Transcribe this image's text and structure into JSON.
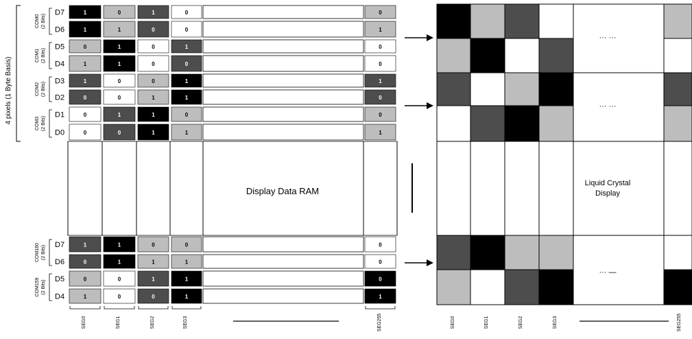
{
  "left_axis_label": "4 pixels (1 Byte Basis)",
  "ram_label": "Display Data RAM",
  "lcd_label_line1": "Liquid Crystal",
  "lcd_label_line2": "Display",
  "ellipsis_top": "···  ···",
  "ellipsis_mid": "···  ···",
  "ellipsis_bottom": "···  —",
  "colors": {
    "v0": "#ffffff",
    "v1": "#bdbdbd",
    "v2": "#4d4d4d",
    "v3": "#000000",
    "line": "#000000"
  },
  "com_labels": [
    {
      "line1": "COM0",
      "line2": "(2 Bits)"
    },
    {
      "line1": "COM1",
      "line2": "(2 Bits)"
    },
    {
      "line1": "COM2",
      "line2": "(2 Bits)"
    },
    {
      "line1": "COM3",
      "line2": "(2 Bits)"
    }
  ],
  "com_labels_bottom": [
    {
      "line1": "COM160",
      "line2": "(2 Bits)"
    },
    {
      "line1": "COM159",
      "line2": "(2 Bits)"
    }
  ],
  "bit_labels_top": [
    "D7",
    "D6",
    "D5",
    "D4",
    "D3",
    "D2",
    "D1",
    "D0"
  ],
  "bit_labels_bottom": [
    "D7",
    "D6",
    "D5",
    "D4"
  ],
  "ram_seg_labels": [
    "SEG0",
    "SEG1",
    "SEG2",
    "SEG3",
    "SEG255"
  ],
  "lcd_seg_labels": [
    "SEG0",
    "SEG1",
    "SEG2",
    "SEG3",
    "SEG255"
  ],
  "ram_top_bits": [
    [
      "1",
      "0",
      "1",
      "0",
      "0"
    ],
    [
      "1",
      "1",
      "0",
      "0",
      "1"
    ],
    [
      "0",
      "1",
      "0",
      "1",
      "0"
    ],
    [
      "1",
      "1",
      "0",
      "0",
      "0"
    ],
    [
      "1",
      "0",
      "0",
      "1",
      "1"
    ],
    [
      "0",
      "0",
      "1",
      "1",
      "0"
    ],
    [
      "0",
      "1",
      "1",
      "0",
      "0"
    ],
    [
      "0",
      "0",
      "1",
      "1",
      "1"
    ]
  ],
  "ram_bottom_bits": [
    [
      "1",
      "1",
      "0",
      "0",
      "0"
    ],
    [
      "0",
      "1",
      "1",
      "1",
      "0"
    ],
    [
      "0",
      "0",
      "1",
      "1",
      "0"
    ],
    [
      "1",
      "0",
      "0",
      "1",
      "1"
    ]
  ],
  "lcd_top_levels": [
    [
      3,
      1,
      2,
      0,
      1
    ],
    [
      1,
      3,
      0,
      2,
      0
    ],
    [
      2,
      0,
      1,
      3,
      2
    ],
    [
      0,
      2,
      3,
      1,
      1
    ]
  ],
  "lcd_bottom_levels": [
    [
      2,
      3,
      1,
      1,
      0
    ],
    [
      1,
      0,
      2,
      3,
      3
    ]
  ]
}
